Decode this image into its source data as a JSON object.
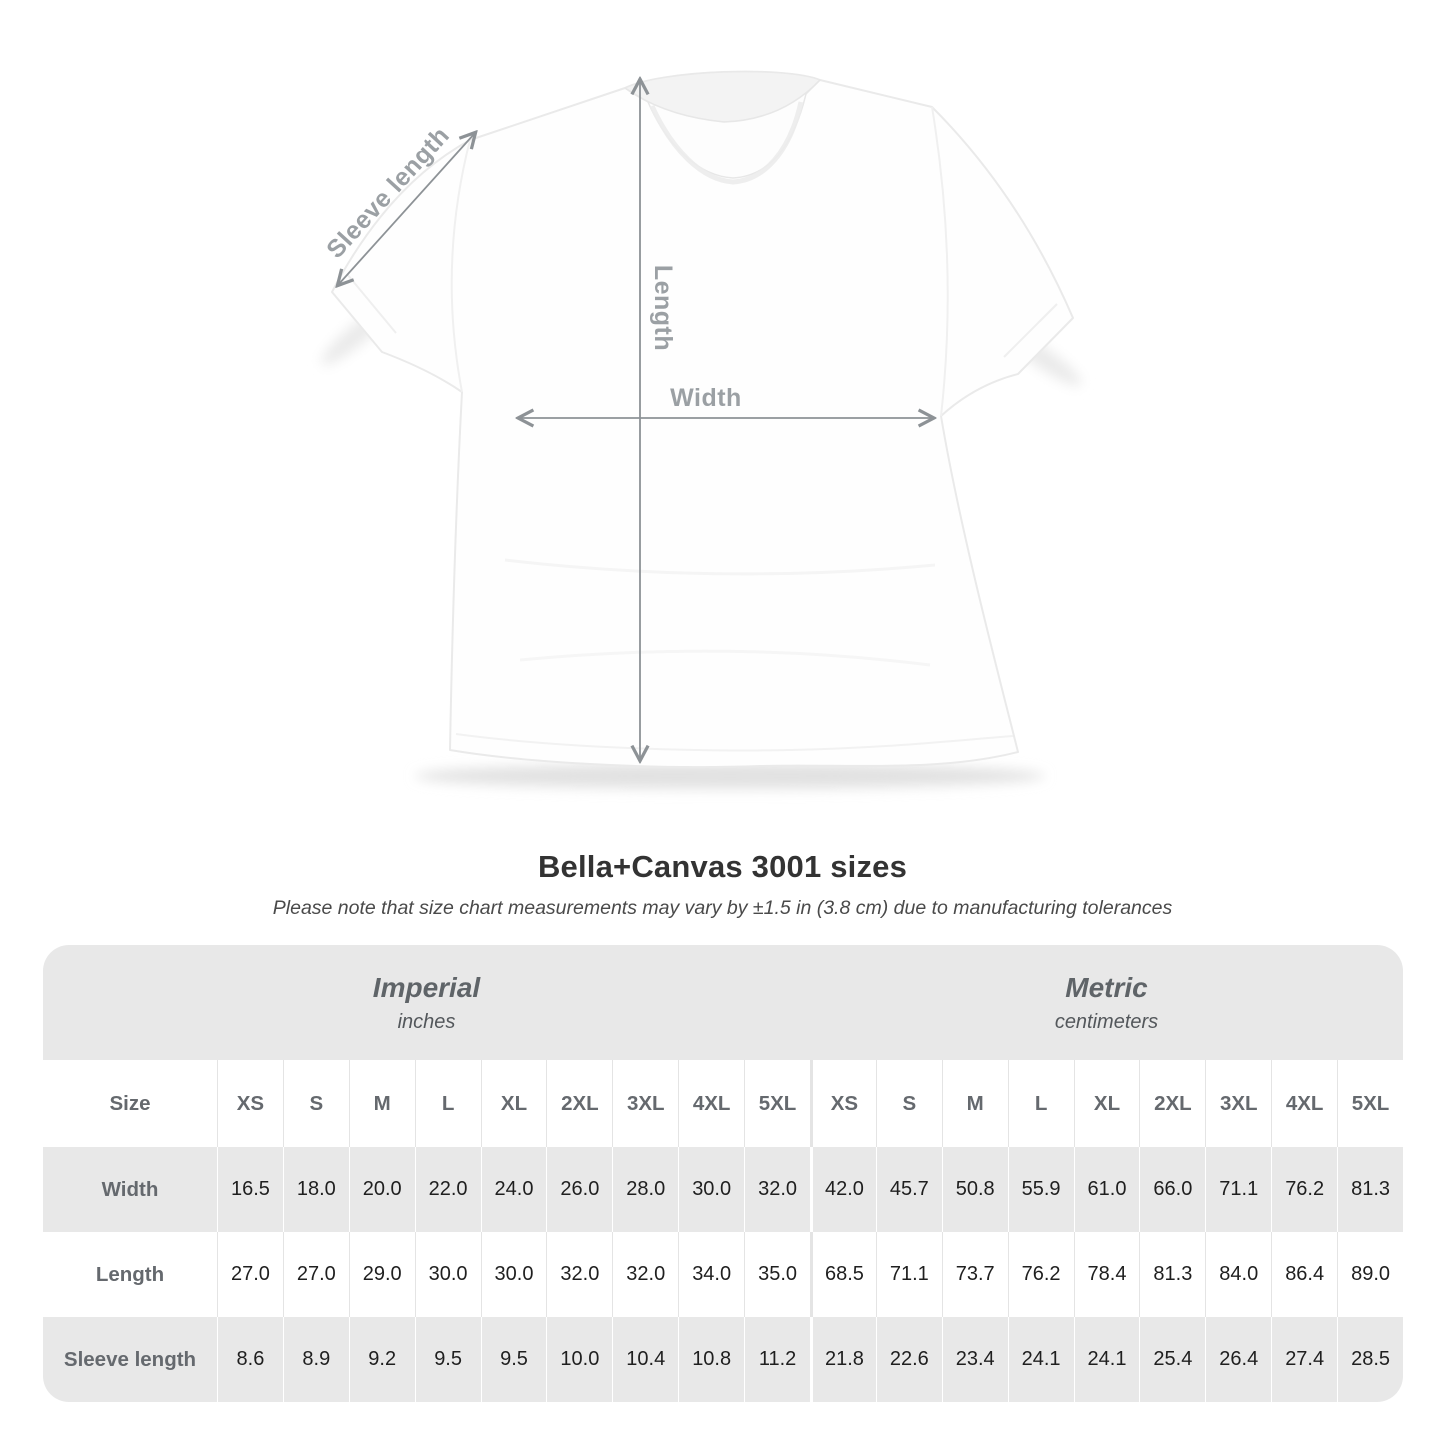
{
  "diagram": {
    "sleeve_label": "Sleeve length",
    "length_label": "Length",
    "width_label": "Width"
  },
  "header": {
    "title": "Bella+Canvas 3001 sizes",
    "subtitle": "Please note that size chart measurements may vary by ±1.5 in (3.8 cm) due to manufacturing tolerances"
  },
  "table": {
    "corner_label": "Size",
    "groups": [
      {
        "name": "Imperial",
        "unit": "inches"
      },
      {
        "name": "Metric",
        "unit": "centimeters"
      }
    ],
    "sizes": [
      "XS",
      "S",
      "M",
      "L",
      "XL",
      "2XL",
      "3XL",
      "4XL",
      "5XL"
    ],
    "rows": [
      {
        "label": "Width",
        "imperial": [
          "16.5",
          "18.0",
          "20.0",
          "22.0",
          "24.0",
          "26.0",
          "28.0",
          "30.0",
          "32.0"
        ],
        "metric": [
          "42.0",
          "45.7",
          "50.8",
          "55.9",
          "61.0",
          "66.0",
          "71.1",
          "76.2",
          "81.3"
        ]
      },
      {
        "label": "Length",
        "imperial": [
          "27.0",
          "27.0",
          "29.0",
          "30.0",
          "30.0",
          "32.0",
          "32.0",
          "34.0",
          "35.0"
        ],
        "metric": [
          "68.5",
          "71.1",
          "73.7",
          "76.2",
          "78.4",
          "81.3",
          "84.0",
          "86.4",
          "89.0"
        ]
      },
      {
        "label": "Sleeve length",
        "imperial": [
          "8.6",
          "8.9",
          "9.2",
          "9.5",
          "9.5",
          "10.0",
          "10.4",
          "10.8",
          "11.2"
        ],
        "metric": [
          "21.8",
          "22.6",
          "23.4",
          "24.1",
          "24.1",
          "25.4",
          "26.4",
          "27.4",
          "28.5"
        ]
      }
    ]
  },
  "chart_data": {
    "type": "table",
    "title": "Bella+Canvas 3001 sizes",
    "note": "Please note that size chart measurements may vary by ±1.5 in (3.8 cm) due to manufacturing tolerances",
    "categories": [
      "XS",
      "S",
      "M",
      "L",
      "XL",
      "2XL",
      "3XL",
      "4XL",
      "5XL"
    ],
    "series": [
      {
        "name": "Width (inches)",
        "values": [
          16.5,
          18.0,
          20.0,
          22.0,
          24.0,
          26.0,
          28.0,
          30.0,
          32.0
        ]
      },
      {
        "name": "Length (inches)",
        "values": [
          27.0,
          27.0,
          29.0,
          30.0,
          30.0,
          32.0,
          32.0,
          34.0,
          35.0
        ]
      },
      {
        "name": "Sleeve length (inches)",
        "values": [
          8.6,
          8.9,
          9.2,
          9.5,
          9.5,
          10.0,
          10.4,
          10.8,
          11.2
        ]
      },
      {
        "name": "Width (cm)",
        "values": [
          42.0,
          45.7,
          50.8,
          55.9,
          61.0,
          66.0,
          71.1,
          76.2,
          81.3
        ]
      },
      {
        "name": "Length (cm)",
        "values": [
          68.5,
          71.1,
          73.7,
          76.2,
          78.4,
          81.3,
          84.0,
          86.4,
          89.0
        ]
      },
      {
        "name": "Sleeve length (cm)",
        "values": [
          21.8,
          22.6,
          23.4,
          24.1,
          24.1,
          25.4,
          26.4,
          27.4,
          28.5
        ]
      }
    ]
  },
  "colors": {
    "band_gray": "#e8e8e8",
    "header_text_gray": "#5f6468",
    "row_label_gray": "#65696e",
    "value_black": "#1f1f1f",
    "diagram_label_gray": "#9ba0a4",
    "arrow_gray": "#8d9296",
    "title_dark": "#333333"
  }
}
